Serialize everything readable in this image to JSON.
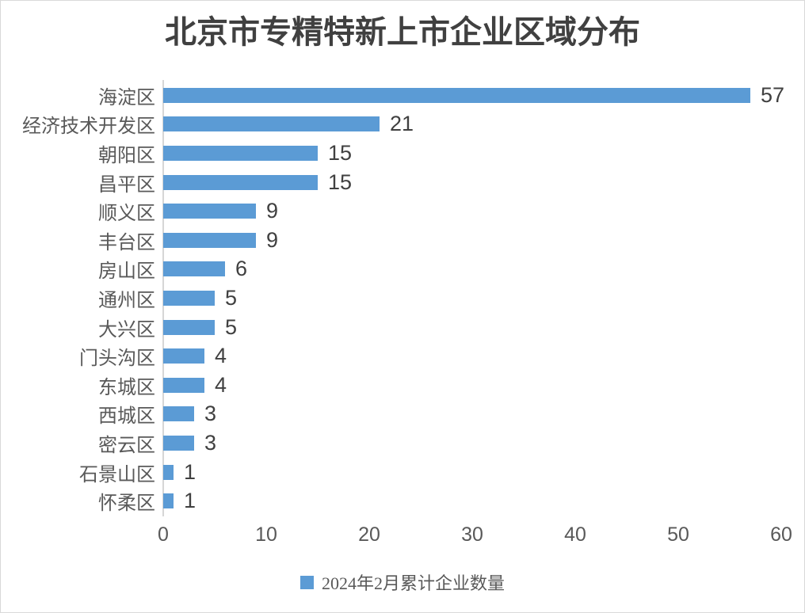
{
  "chart_data": {
    "type": "bar",
    "orientation": "horizontal",
    "title": "北京市专精特新上市企业区域分布",
    "categories": [
      "海淀区",
      "经济技术开发区",
      "朝阳区",
      "昌平区",
      "顺义区",
      "丰台区",
      "房山区",
      "通州区",
      "大兴区",
      "门头沟区",
      "东城区",
      "西城区",
      "密云区",
      "石景山区",
      "怀柔区"
    ],
    "values": [
      57,
      21,
      15,
      15,
      9,
      9,
      6,
      5,
      5,
      4,
      4,
      3,
      3,
      1,
      1
    ],
    "legend": "2024年2月累计企业数量",
    "legend_position": "bottom",
    "x_ticks": [
      0,
      10,
      20,
      30,
      40,
      50,
      60
    ],
    "xlim": [
      0,
      60
    ],
    "grid": "off",
    "data_labels": "outside-end",
    "colors": {
      "bar": "#5B9BD5",
      "title_text": "#404040",
      "category_text": "#595959",
      "value_text": "#404040",
      "tick_text": "#595959",
      "axis_line": "#D6D6D6",
      "border": "#D9D9D9",
      "background": "#FFFFFF"
    }
  }
}
